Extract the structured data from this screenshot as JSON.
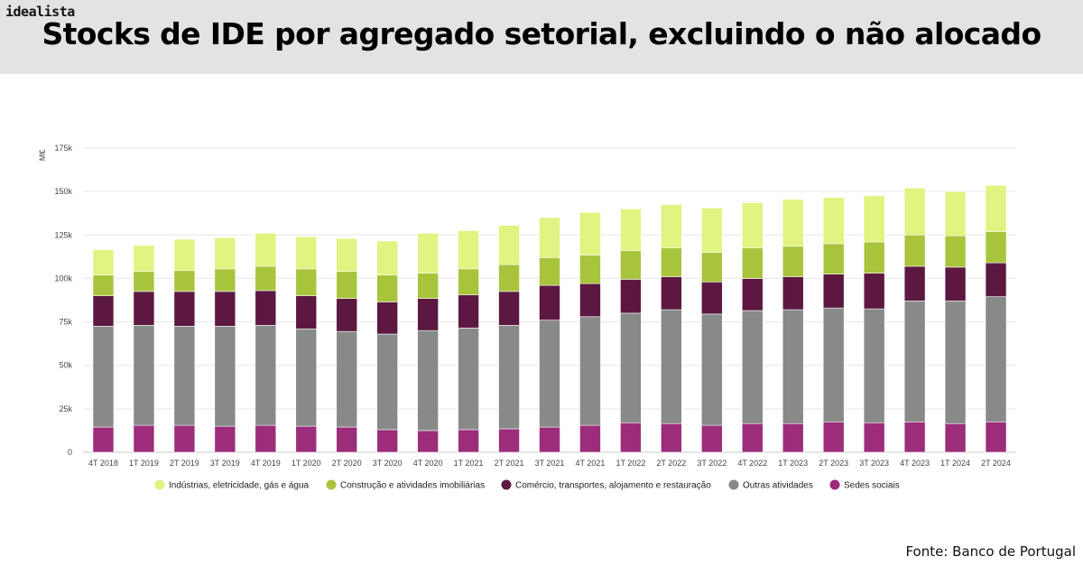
{
  "brand": "idealista",
  "title": "Stocks de IDE por agregado setorial, excluindo o não alocado",
  "source": "Fonte: Banco de Portugal",
  "chart_data": {
    "type": "bar",
    "stacked": true,
    "ylabel": "M€",
    "ylim": [
      0,
      175000
    ],
    "yticks": [
      0,
      25000,
      50000,
      75000,
      100000,
      125000,
      150000,
      175000
    ],
    "ytick_labels": [
      "0",
      "25k",
      "50k",
      "75k",
      "100k",
      "125k",
      "150k",
      "175k"
    ],
    "categories": [
      "4T 2018",
      "1T 2019",
      "2T 2019",
      "3T 2019",
      "4T 2019",
      "1T 2020",
      "2T 2020",
      "3T 2020",
      "4T 2020",
      "1T 2021",
      "2T 2021",
      "3T 2021",
      "4T 2021",
      "1T 2022",
      "2T 2022",
      "3T 2022",
      "4T 2022",
      "1T 2023",
      "2T 2023",
      "3T 2023",
      "4T 2023",
      "1T 2024",
      "2T 2024"
    ],
    "legend_position": "bottom",
    "series": [
      {
        "name": "Sedes sociais",
        "color": "#9b2d7a",
        "values": [
          14500,
          15500,
          15500,
          15000,
          15500,
          15000,
          14500,
          13000,
          12500,
          13000,
          13500,
          14500,
          15500,
          17000,
          16500,
          15500,
          16500,
          16500,
          17500,
          17000,
          17500,
          16500,
          17500
        ]
      },
      {
        "name": "Outras atividades",
        "color": "#888a87",
        "values": [
          58000,
          57500,
          57000,
          57500,
          57500,
          56000,
          55000,
          55000,
          57500,
          58500,
          59500,
          61500,
          62500,
          63000,
          65500,
          64000,
          65000,
          65500,
          65500,
          65500,
          69500,
          70500,
          72000
        ]
      },
      {
        "name": "Comércio, transportes, alojamento e restauração",
        "color": "#5c1840",
        "values": [
          17500,
          19500,
          20000,
          20000,
          20000,
          19000,
          19000,
          18500,
          18500,
          19000,
          19500,
          20000,
          19000,
          19500,
          19000,
          18500,
          18500,
          19000,
          19500,
          20500,
          20000,
          19500,
          19500
        ]
      },
      {
        "name": "Construção e atividades imobiliárias",
        "color": "#a8c43c",
        "values": [
          12000,
          11500,
          12000,
          13000,
          14000,
          15500,
          15500,
          15500,
          14500,
          15000,
          15500,
          16000,
          16500,
          16500,
          16500,
          17000,
          17500,
          17500,
          17500,
          18000,
          18000,
          18000,
          18000
        ]
      },
      {
        "name": "Indústrias, eletricidade, gás e água",
        "color": "#e1f380",
        "values": [
          14500,
          15000,
          18000,
          18000,
          19000,
          18500,
          19000,
          19500,
          23000,
          22000,
          22500,
          23000,
          24500,
          24000,
          25000,
          25500,
          26000,
          27000,
          26500,
          26500,
          27000,
          25500,
          26500
        ]
      }
    ],
    "legend_order": [
      "Indústrias, eletricidade, gás e água",
      "Construção e atividades imobiliárias",
      "Comércio, transportes, alojamento e restauração",
      "Outras atividades",
      "Sedes sociais"
    ]
  }
}
